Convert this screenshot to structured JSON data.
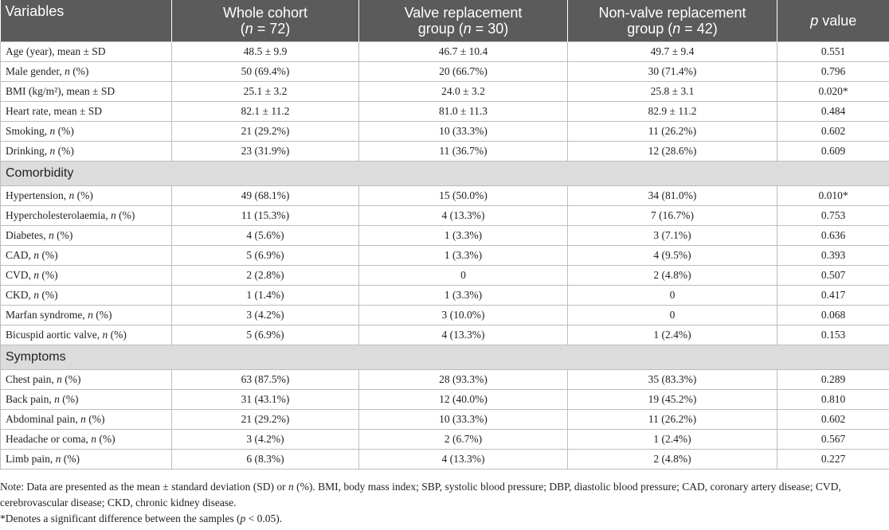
{
  "table": {
    "header": [
      "Variables",
      "Whole cohort (n = 72)",
      "Valve replacement group (n = 30)",
      "Non-valve replacement group (n = 42)",
      "p value"
    ],
    "body": [
      {
        "rows": [
          [
            "Age (year), mean ± SD",
            "48.5 ± 9.9",
            "46.7 ± 10.4",
            "49.7 ± 9.4",
            "0.551"
          ],
          [
            "Male gender, n (%)",
            "50 (69.4%)",
            "20 (66.7%)",
            "30 (71.4%)",
            "0.796"
          ],
          [
            "BMI (kg/m²), mean ± SD",
            "25.1 ± 3.2",
            "24.0 ± 3.2",
            "25.8 ± 3.1",
            "0.020*"
          ],
          [
            "Heart rate, mean ± SD",
            "82.1 ± 11.2",
            "81.0 ± 11.3",
            "82.9 ± 11.2",
            "0.484"
          ],
          [
            "Smoking, n (%)",
            "21 (29.2%)",
            "10 (33.3%)",
            "11 (26.2%)",
            "0.602"
          ],
          [
            "Drinking, n (%)",
            "23 (31.9%)",
            "11 (36.7%)",
            "12 (28.6%)",
            "0.609"
          ]
        ]
      },
      {
        "title": "Comorbidity",
        "rows": [
          [
            "Hypertension, n (%)",
            "49 (68.1%)",
            "15 (50.0%)",
            "34 (81.0%)",
            "0.010*"
          ],
          [
            "Hypercholesterolaemia, n (%)",
            "11 (15.3%)",
            "4 (13.3%)",
            "7 (16.7%)",
            "0.753"
          ],
          [
            "Diabetes, n (%)",
            "4 (5.6%)",
            "1 (3.3%)",
            "3 (7.1%)",
            "0.636"
          ],
          [
            "CAD, n (%)",
            "5 (6.9%)",
            "1 (3.3%)",
            "4 (9.5%)",
            "0.393"
          ],
          [
            "CVD, n (%)",
            "2 (2.8%)",
            "0",
            "2 (4.8%)",
            "0.507"
          ],
          [
            "CKD, n (%)",
            "1 (1.4%)",
            "1 (3.3%)",
            "0",
            "0.417"
          ],
          [
            "Marfan syndrome, n (%)",
            "3 (4.2%)",
            "3 (10.0%)",
            "0",
            "0.068"
          ],
          [
            "Bicuspid aortic valve, n (%)",
            "5 (6.9%)",
            "4 (13.3%)",
            "1 (2.4%)",
            "0.153"
          ]
        ]
      },
      {
        "title": "Symptoms",
        "rows": [
          [
            "Chest pain, n (%)",
            "63 (87.5%)",
            "28 (93.3%)",
            "35 (83.3%)",
            "0.289"
          ],
          [
            "Back pain, n (%)",
            "31 (43.1%)",
            "12 (40.0%)",
            "19 (45.2%)",
            "0.810"
          ],
          [
            "Abdominal pain, n (%)",
            "21 (29.2%)",
            "10 (33.3%)",
            "11 (26.2%)",
            "0.602"
          ],
          [
            "Headache or coma, n (%)",
            "3 (4.2%)",
            "2 (6.7%)",
            "1 (2.4%)",
            "0.567"
          ],
          [
            "Limb pain, n (%)",
            "6 (8.3%)",
            "4 (13.3%)",
            "2 (4.8%)",
            "0.227"
          ]
        ]
      }
    ]
  },
  "notes": [
    "Note: Data are presented as the mean ± standard deviation (SD) or n (%). BMI, body mass index; SBP, systolic blood pressure; DBP, diastolic blood pressure; CAD, coronary artery disease; CVD, cerebrovascular disease; CKD, chronic kidney disease.",
    "*Denotes a significant difference between the samples (p < 0.05)."
  ]
}
